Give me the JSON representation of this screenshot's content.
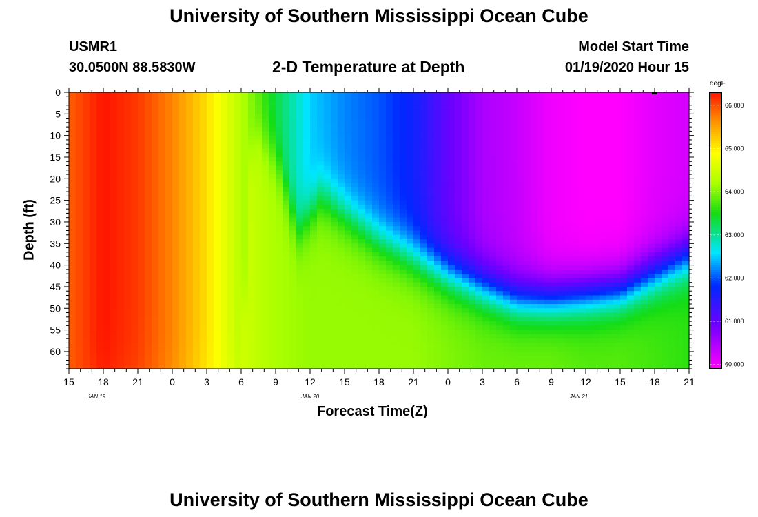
{
  "page": {
    "title_top": "University of Southern Mississippi Ocean Cube",
    "title_bottom": "University of Southern Mississippi Ocean Cube",
    "station_id": "USMR1",
    "station_coords": "30.0500N 88.5830W",
    "model_start_label": "Model Start Time",
    "model_start_value": "01/19/2020 Hour 15"
  },
  "chart_data": {
    "type": "heatmap",
    "title": "2-D Temperature at Depth",
    "xlabel": "Forecast Time(Z)",
    "ylabel": "Depth (ft)",
    "colorbar_unit": "degF",
    "x_tick_labels": [
      "15",
      "18",
      "21",
      "0",
      "3",
      "6",
      "9",
      "12",
      "15",
      "18",
      "21",
      "0",
      "3",
      "6",
      "9",
      "12",
      "15",
      "18",
      "21"
    ],
    "date_labels": [
      {
        "text": "JAN 19",
        "hour_index": 4
      },
      {
        "text": "JAN 20",
        "hour_index": 35
      },
      {
        "text": "JAN 21",
        "hour_index": 74
      }
    ],
    "x_range_hours": [
      0,
      54
    ],
    "y_tick_labels": [
      "0",
      "5",
      "10",
      "15",
      "20",
      "25",
      "30",
      "35",
      "40",
      "45",
      "50",
      "55",
      "60"
    ],
    "y_range": [
      0,
      64
    ],
    "y_inverted": true,
    "colorbar_ticks": [
      "60.000",
      "61.000",
      "62.000",
      "63.000",
      "64.000",
      "65.000",
      "66.000"
    ],
    "value_range": [
      59.9,
      66.3
    ],
    "surface_temperature": [
      [
        0,
        65.9
      ],
      [
        3,
        66.3
      ],
      [
        6,
        66.1
      ],
      [
        9,
        65.7
      ],
      [
        12,
        65.1
      ],
      [
        15,
        64.3
      ],
      [
        18,
        63.3
      ],
      [
        21,
        62.5
      ],
      [
        24,
        62.2
      ],
      [
        27,
        62.0
      ],
      [
        30,
        61.7
      ],
      [
        33,
        61.0
      ],
      [
        36,
        60.5
      ],
      [
        39,
        60.3
      ],
      [
        42,
        60.0
      ],
      [
        45,
        59.9
      ],
      [
        48,
        59.9
      ],
      [
        51,
        60.1
      ],
      [
        54,
        60.2
      ]
    ],
    "mixed_layer_depth_ft": [
      [
        0,
        64
      ],
      [
        15,
        64
      ],
      [
        16,
        8
      ],
      [
        18,
        15
      ],
      [
        20,
        32
      ],
      [
        22,
        24
      ],
      [
        24,
        28
      ],
      [
        27,
        34
      ],
      [
        30,
        38
      ],
      [
        33,
        42
      ],
      [
        36,
        45
      ],
      [
        39,
        48
      ],
      [
        42,
        48
      ],
      [
        45,
        47
      ],
      [
        48,
        46
      ],
      [
        51,
        42
      ],
      [
        54,
        38
      ]
    ],
    "bottom_temperature": [
      [
        0,
        65.9
      ],
      [
        3,
        66.2
      ],
      [
        6,
        66.0
      ],
      [
        9,
        65.6
      ],
      [
        12,
        65.0
      ],
      [
        15,
        64.5
      ],
      [
        18,
        64.2
      ],
      [
        21,
        64.1
      ],
      [
        24,
        64.1
      ],
      [
        27,
        64.1
      ],
      [
        30,
        64.1
      ],
      [
        33,
        64.0
      ],
      [
        36,
        63.9
      ],
      [
        39,
        63.9
      ],
      [
        42,
        63.9
      ],
      [
        45,
        63.8
      ],
      [
        48,
        63.8
      ],
      [
        51,
        63.7
      ],
      [
        54,
        63.6
      ]
    ],
    "grid": false,
    "legend": "colorbar-right"
  }
}
